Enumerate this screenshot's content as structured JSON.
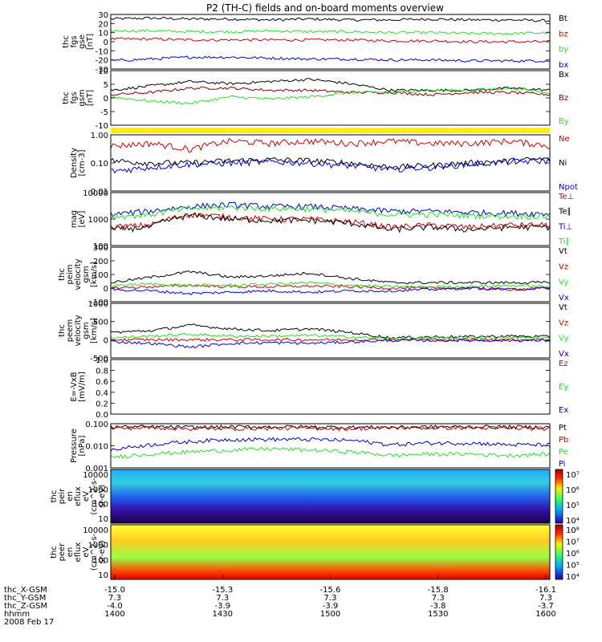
{
  "title": "P2 (TH-C) fields and on-board moments overview",
  "colors": {
    "black": "#000000",
    "red": "#cc0000",
    "green": "#22dd22",
    "blue": "#0000cc",
    "darkred": "#800000",
    "yellow": "#ffee00"
  },
  "chart_data": [
    {
      "type": "line",
      "ylabel": [
        "thc",
        "fgs",
        "gse",
        "[nT]"
      ],
      "ylim": [
        -30,
        30
      ],
      "yticks": [
        "30",
        "20",
        "10",
        "0",
        "-10",
        "-20",
        "-30"
      ],
      "series": [
        {
          "name": "Bt",
          "color": "#000000",
          "values": [
            25,
            26,
            25,
            25,
            24,
            25,
            24,
            24,
            25,
            24,
            24,
            23
          ]
        },
        {
          "name": "bz",
          "color": "#cc0000",
          "values": [
            3,
            3,
            2,
            2,
            2,
            2,
            2,
            1,
            1,
            0,
            0,
            0
          ]
        },
        {
          "name": "by",
          "color": "#22dd22",
          "values": [
            12,
            12,
            11,
            11,
            12,
            11,
            11,
            10,
            10,
            9,
            9,
            10
          ]
        },
        {
          "name": "bx",
          "color": "#0000cc",
          "values": [
            -21,
            -19,
            -17,
            -17,
            -18,
            -19,
            -19,
            -20,
            -20,
            -21,
            -21,
            -21
          ]
        }
      ]
    },
    {
      "type": "line",
      "ylabel": [
        "thc",
        "fgs",
        "gsm",
        "[nT]"
      ],
      "ylim": [
        -15,
        10
      ],
      "yticks": [
        "10",
        "5",
        "0",
        "-5",
        "-10"
      ],
      "series": [
        {
          "name": "Bx",
          "color": "#000000",
          "values": [
            1,
            3,
            5,
            4,
            5,
            6,
            4,
            1,
            1,
            1,
            2,
            1
          ]
        },
        {
          "name": "Bz",
          "color": "#800000",
          "values": [
            -1,
            0,
            2,
            2,
            1,
            1,
            0,
            0,
            -1,
            0,
            0,
            -1
          ]
        },
        {
          "name": "By",
          "color": "#22dd22",
          "values": [
            -2,
            -4,
            -5,
            -2,
            -3,
            -2,
            0,
            0,
            1,
            1,
            2,
            0
          ]
        }
      ]
    },
    {
      "type": "line",
      "ylabel": [
        "Density",
        "[cm-3]"
      ],
      "scale": "log",
      "ylim": [
        0.01,
        1.0
      ],
      "yticks": [
        "1.00",
        "0.10",
        "0.01"
      ],
      "series": [
        {
          "name": "Ne",
          "color": "#cc0000",
          "values": [
            0.4,
            0.5,
            0.3,
            0.6,
            0.5,
            0.6,
            0.5,
            0.6,
            0.5,
            0.5,
            0.6,
            0.4
          ]
        },
        {
          "name": "Ni",
          "color": "#000000",
          "values": [
            0.12,
            0.1,
            0.1,
            0.12,
            0.13,
            0.12,
            0.1,
            0.07,
            0.08,
            0.1,
            0.12,
            0.14
          ]
        },
        {
          "name": "Npot",
          "color": "#0000cc",
          "values": [
            0.05,
            0.07,
            0.09,
            0.1,
            0.11,
            0.1,
            0.08,
            0.06,
            0.07,
            0.09,
            0.11,
            0.12
          ]
        }
      ]
    },
    {
      "type": "line",
      "ylabel": [
        "mag",
        "[eV]"
      ],
      "scale": "log",
      "ylim": [
        100,
        10000
      ],
      "yticks": [
        "10000",
        "1000",
        "100"
      ],
      "series": [
        {
          "name": "Te⊥",
          "color": "#cc0000",
          "values": [
            500,
            600,
            1500,
            1200,
            1000,
            1000,
            800,
            500,
            600,
            500,
            600,
            600
          ]
        },
        {
          "name": "Te∥",
          "color": "#000000",
          "values": [
            400,
            500,
            1400,
            1000,
            900,
            900,
            700,
            400,
            500,
            400,
            500,
            500
          ]
        },
        {
          "name": "Ti⊥",
          "color": "#0000cc",
          "values": [
            1500,
            2000,
            3000,
            3500,
            3000,
            3000,
            2500,
            2000,
            2000,
            1800,
            1700,
            1600
          ]
        },
        {
          "name": "Ti∥",
          "color": "#22dd22",
          "values": [
            1200,
            1500,
            2500,
            2800,
            2500,
            2500,
            2000,
            1500,
            1500,
            1400,
            1300,
            1300
          ]
        }
      ]
    },
    {
      "type": "line",
      "ylabel": [
        "thc",
        "peim",
        "velocity",
        "gsm",
        "[km/s]"
      ],
      "ylim": [
        -100,
        300
      ],
      "yticks": [
        "300",
        "200",
        "100",
        "0",
        "-100"
      ],
      "series": [
        {
          "name": "Vt",
          "color": "#000000",
          "values": [
            40,
            80,
            120,
            80,
            90,
            110,
            70,
            40,
            40,
            40,
            40,
            40
          ]
        },
        {
          "name": "Vz",
          "color": "#cc0000",
          "values": [
            0,
            10,
            20,
            10,
            10,
            15,
            10,
            0,
            0,
            0,
            -10,
            0
          ]
        },
        {
          "name": "Vy",
          "color": "#22dd22",
          "values": [
            20,
            30,
            20,
            20,
            30,
            40,
            20,
            10,
            10,
            10,
            20,
            10
          ]
        },
        {
          "name": "Vx",
          "color": "#0000cc",
          "values": [
            -10,
            -20,
            -40,
            -30,
            -20,
            -30,
            -20,
            -20,
            -10,
            0,
            -10,
            0
          ]
        }
      ]
    },
    {
      "type": "line",
      "ylabel": [
        "thc",
        "peem",
        "velocity",
        "gsm",
        "[km/s]"
      ],
      "ylim": [
        -500,
        1000
      ],
      "yticks": [
        "1000",
        "500",
        "0",
        "-500"
      ],
      "series": [
        {
          "name": "Vt",
          "color": "#000000",
          "values": [
            200,
            250,
            400,
            300,
            250,
            300,
            200,
            50,
            80,
            80,
            100,
            80
          ]
        },
        {
          "name": "Vz",
          "color": "#cc0000",
          "values": [
            0,
            0,
            0,
            0,
            0,
            0,
            0,
            0,
            0,
            0,
            0,
            0
          ]
        },
        {
          "name": "Vy",
          "color": "#22dd22",
          "values": [
            50,
            100,
            150,
            100,
            100,
            120,
            80,
            30,
            50,
            50,
            60,
            50
          ]
        },
        {
          "name": "Vx",
          "color": "#0000cc",
          "values": [
            -50,
            -100,
            -200,
            -100,
            -80,
            -100,
            -60,
            -20,
            -20,
            -20,
            -20,
            -20
          ]
        }
      ]
    },
    {
      "type": "line",
      "ylabel": [
        "E=-VxB",
        "[mV/m]"
      ],
      "ylim": [
        0,
        1.0
      ],
      "yticks": [
        "1.0",
        "0.8",
        "0.6",
        "0.4",
        "0.2",
        "0.0"
      ],
      "series": [
        {
          "name": "Ez",
          "color": "#cc0000",
          "values": []
        },
        {
          "name": "Ey",
          "color": "#22dd22",
          "values": []
        },
        {
          "name": "Ex",
          "color": "#0000cc",
          "values": []
        }
      ]
    },
    {
      "type": "line",
      "ylabel": [
        "Pressure",
        "[nPa]"
      ],
      "scale": "log",
      "ylim": [
        0.001,
        0.3
      ],
      "yticks": [
        "0.100",
        "0.010",
        "0.001"
      ],
      "series": [
        {
          "name": "Pt",
          "color": "#000000",
          "values": [
            0.2,
            0.2,
            0.19,
            0.2,
            0.2,
            0.2,
            0.19,
            0.19,
            0.2,
            0.2,
            0.2,
            0.19
          ]
        },
        {
          "name": "Pb",
          "color": "#cc0000",
          "values": [
            0.17,
            0.18,
            0.16,
            0.16,
            0.17,
            0.17,
            0.16,
            0.18,
            0.18,
            0.18,
            0.17,
            0.16
          ]
        },
        {
          "name": "Pe",
          "color": "#22dd22",
          "values": [
            0.004,
            0.006,
            0.008,
            0.01,
            0.012,
            0.01,
            0.008,
            0.005,
            0.006,
            0.006,
            0.005,
            0.006
          ]
        },
        {
          "name": "Pi",
          "color": "#0000cc",
          "values": [
            0.01,
            0.02,
            0.03,
            0.04,
            0.04,
            0.04,
            0.035,
            0.02,
            0.025,
            0.025,
            0.02,
            0.02
          ]
        }
      ]
    },
    {
      "type": "heatmap",
      "ylabel": [
        "thc",
        "peir",
        "en",
        "eflux",
        "eV",
        "(cm^2-s-",
        "sr-eV)"
      ],
      "yticks": [
        "10000",
        "1000",
        "100",
        "10"
      ],
      "colorbar_ticks": [
        "10⁷",
        "10⁶",
        "10⁵",
        "10⁴"
      ]
    },
    {
      "type": "heatmap",
      "ylabel": [
        "thc",
        "peer",
        "en",
        "eflux",
        "eV",
        "(cm^2-s-",
        "sr-eV)"
      ],
      "yticks": [
        "10000",
        "1000",
        "100",
        "10"
      ],
      "colorbar_ticks": [
        "10⁸",
        "10⁷",
        "10⁶",
        "10⁵",
        "10⁴"
      ]
    }
  ],
  "x_axis": {
    "ticks": [
      {
        "x": "-15.0",
        "y": "7.3",
        "z": "-4.0",
        "hhmm": "1400"
      },
      {
        "x": "-15.3",
        "y": "7.3",
        "z": "-3.9",
        "hhmm": "1430"
      },
      {
        "x": "-15.6",
        "y": "7.3",
        "z": "-3.9",
        "hhmm": "1500"
      },
      {
        "x": "-15.8",
        "y": "7.3",
        "z": "-3.8",
        "hhmm": "1530"
      },
      {
        "x": "-16.1",
        "y": "7.3",
        "z": "-3.7",
        "hhmm": "1600"
      }
    ]
  },
  "footer": {
    "row_labels": [
      "thc_X-GSM",
      "thc_Y-GSM",
      "thc_Z-GSM",
      "hhmm"
    ],
    "date": "2008 Feb 17"
  }
}
